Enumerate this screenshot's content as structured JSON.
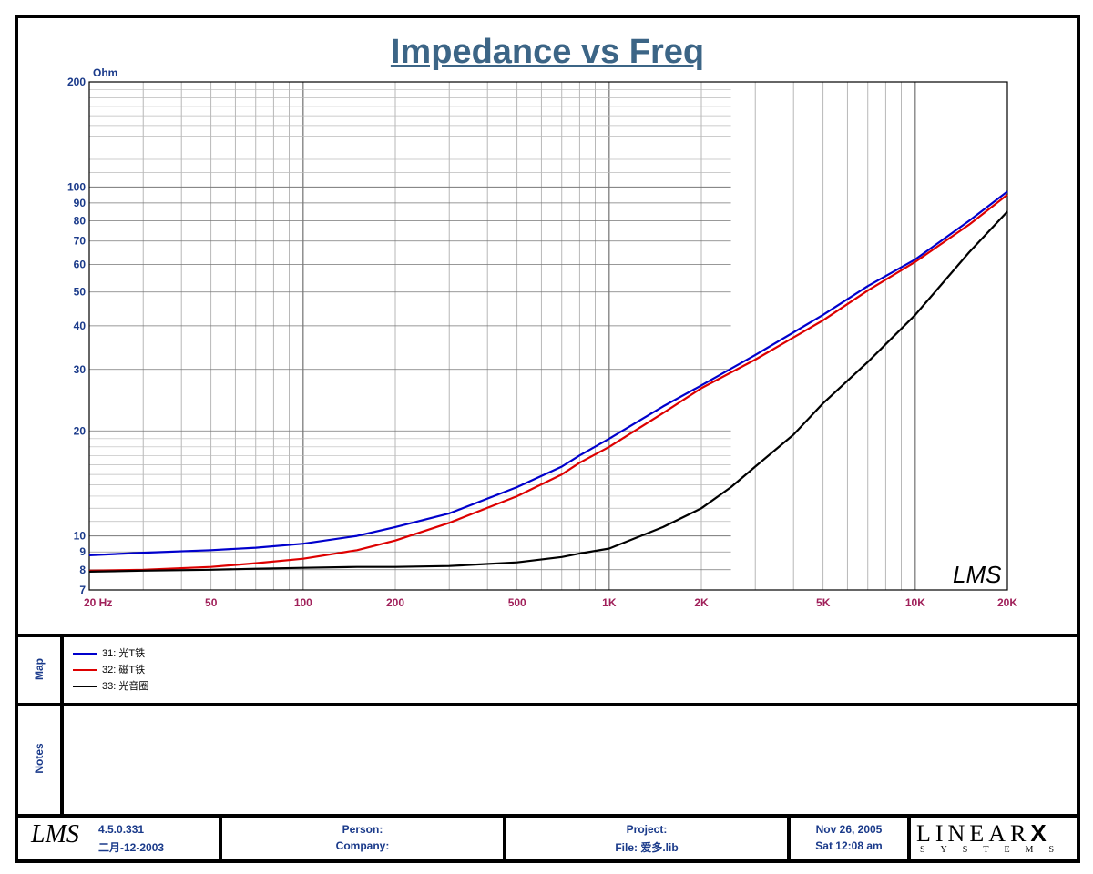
{
  "chart_data": {
    "type": "line",
    "title": "Impedance vs Freq",
    "ylabel": "Ohm",
    "xlabel": "",
    "x_scale": "log",
    "y_scale": "log",
    "xlim": [
      20,
      20000
    ],
    "ylim": [
      7,
      200
    ],
    "x_ticks": [
      {
        "v": 20,
        "label": "20  Hz"
      },
      {
        "v": 50,
        "label": "50"
      },
      {
        "v": 100,
        "label": "100"
      },
      {
        "v": 200,
        "label": "200"
      },
      {
        "v": 500,
        "label": "500"
      },
      {
        "v": 1000,
        "label": "1K"
      },
      {
        "v": 2000,
        "label": "2K"
      },
      {
        "v": 5000,
        "label": "5K"
      },
      {
        "v": 10000,
        "label": "10K"
      },
      {
        "v": 20000,
        "label": "20K"
      }
    ],
    "y_ticks": [
      {
        "v": 200,
        "label": "200"
      },
      {
        "v": 100,
        "label": "100"
      },
      {
        "v": 90,
        "label": "90"
      },
      {
        "v": 80,
        "label": "80"
      },
      {
        "v": 70,
        "label": "70"
      },
      {
        "v": 60,
        "label": "60"
      },
      {
        "v": 50,
        "label": "50"
      },
      {
        "v": 40,
        "label": "40"
      },
      {
        "v": 30,
        "label": "30"
      },
      {
        "v": 20,
        "label": "20"
      },
      {
        "v": 10,
        "label": "10"
      },
      {
        "v": 9,
        "label": "9"
      },
      {
        "v": 8,
        "label": "8"
      },
      {
        "v": 7,
        "label": "7"
      }
    ],
    "grid": true,
    "series": [
      {
        "name": "31: 光T铁",
        "color": "#0000cc",
        "x": [
          20,
          30,
          50,
          70,
          100,
          150,
          200,
          300,
          500,
          700,
          800,
          1000,
          1500,
          2000,
          3000,
          5000,
          7000,
          10000,
          15000,
          20000
        ],
        "y": [
          8.8,
          8.95,
          9.1,
          9.25,
          9.5,
          10.0,
          10.6,
          11.6,
          13.8,
          15.8,
          17.0,
          19.0,
          23.5,
          27.0,
          33.0,
          43.0,
          52.0,
          62.0,
          80.0,
          97.0
        ]
      },
      {
        "name": "32: 磁T铁",
        "color": "#dd0000",
        "x": [
          20,
          30,
          50,
          70,
          100,
          150,
          200,
          300,
          500,
          700,
          800,
          1000,
          1500,
          2000,
          3000,
          5000,
          7000,
          10000,
          15000,
          20000
        ],
        "y": [
          7.95,
          8.0,
          8.15,
          8.35,
          8.6,
          9.1,
          9.7,
          10.9,
          13.0,
          15.0,
          16.2,
          18.0,
          22.5,
          26.5,
          32.0,
          41.5,
          50.5,
          61.0,
          78.0,
          95.0
        ]
      },
      {
        "name": "33: 光音圈",
        "color": "#000000",
        "x": [
          20,
          30,
          50,
          70,
          100,
          150,
          200,
          300,
          500,
          700,
          800,
          1000,
          1500,
          2000,
          2500,
          3000,
          4000,
          5000,
          7000,
          10000,
          15000,
          20000
        ],
        "y": [
          7.9,
          7.95,
          8.0,
          8.05,
          8.1,
          8.15,
          8.15,
          8.2,
          8.4,
          8.7,
          8.9,
          9.2,
          10.6,
          12.0,
          13.8,
          15.8,
          19.5,
          24.0,
          31.5,
          43.0,
          65.0,
          85.0
        ]
      }
    ]
  },
  "panels": {
    "map_label": "Map",
    "notes_label": "Notes"
  },
  "footer": {
    "version": "4.5.0.331",
    "build_date": "二月-12-2003",
    "person_label": "Person:",
    "company_label": "Company:",
    "project_label": "Project:",
    "file_label": "File: 爱多.lib",
    "date": "Nov 26, 2005",
    "time": "Sat 12:08 am",
    "brand_top": "LINEAR",
    "brand_x": "X",
    "brand_bottom": "SYSTEMS"
  },
  "logo_text": "LMS"
}
